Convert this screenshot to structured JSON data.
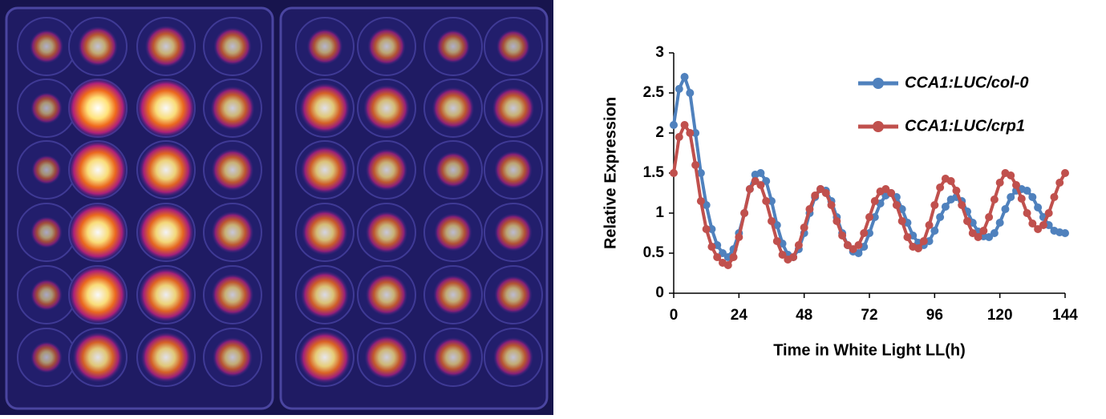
{
  "chart_data": {
    "type": "line",
    "x_label": "Time in White Light LL(h)",
    "y_label": "Relative Expression",
    "x": [
      0,
      2,
      4,
      6,
      8,
      10,
      12,
      14,
      16,
      18,
      20,
      22,
      24,
      26,
      28,
      30,
      32,
      34,
      36,
      38,
      40,
      42,
      44,
      46,
      48,
      50,
      52,
      54,
      56,
      58,
      60,
      62,
      64,
      66,
      68,
      70,
      72,
      74,
      76,
      78,
      80,
      82,
      84,
      86,
      88,
      90,
      92,
      94,
      96,
      98,
      100,
      102,
      104,
      106,
      108,
      110,
      112,
      114,
      116,
      118,
      120,
      122,
      124,
      126,
      128,
      130,
      132,
      134,
      136,
      138,
      140,
      142,
      144
    ],
    "series": [
      {
        "name": "CCA1:LUC/col-0",
        "color": "#4f81bd",
        "values": [
          2.1,
          2.55,
          2.7,
          2.5,
          2.0,
          1.5,
          1.1,
          0.8,
          0.6,
          0.5,
          0.45,
          0.55,
          0.75,
          1.0,
          1.3,
          1.48,
          1.5,
          1.4,
          1.15,
          0.85,
          0.62,
          0.48,
          0.45,
          0.55,
          0.75,
          1.0,
          1.2,
          1.3,
          1.28,
          1.15,
          0.95,
          0.75,
          0.6,
          0.52,
          0.5,
          0.58,
          0.75,
          0.95,
          1.12,
          1.22,
          1.25,
          1.2,
          1.05,
          0.88,
          0.72,
          0.63,
          0.6,
          0.65,
          0.78,
          0.95,
          1.08,
          1.17,
          1.2,
          1.15,
          1.02,
          0.88,
          0.77,
          0.71,
          0.7,
          0.75,
          0.88,
          1.05,
          1.2,
          1.28,
          1.3,
          1.28,
          1.2,
          1.07,
          0.95,
          0.85,
          0.78,
          0.76,
          0.75
        ]
      },
      {
        "name": "CCA1:LUC/crp1",
        "color": "#c0504d",
        "values": [
          1.5,
          1.95,
          2.1,
          2.0,
          1.6,
          1.15,
          0.8,
          0.58,
          0.45,
          0.38,
          0.35,
          0.45,
          0.7,
          1.0,
          1.3,
          1.4,
          1.35,
          1.15,
          0.9,
          0.65,
          0.48,
          0.42,
          0.45,
          0.6,
          0.82,
          1.05,
          1.22,
          1.3,
          1.25,
          1.1,
          0.9,
          0.72,
          0.6,
          0.55,
          0.6,
          0.75,
          0.95,
          1.15,
          1.27,
          1.3,
          1.25,
          1.1,
          0.9,
          0.7,
          0.58,
          0.56,
          0.65,
          0.85,
          1.1,
          1.32,
          1.43,
          1.4,
          1.28,
          1.1,
          0.9,
          0.75,
          0.7,
          0.78,
          0.95,
          1.17,
          1.38,
          1.5,
          1.47,
          1.35,
          1.18,
          1.0,
          0.87,
          0.8,
          0.85,
          1.0,
          1.2,
          1.38,
          1.5
        ]
      }
    ],
    "xlim": [
      0,
      144
    ],
    "xticks": [
      0,
      24,
      48,
      72,
      96,
      120,
      144
    ],
    "ylim": [
      0,
      3
    ],
    "yticks": [
      0,
      0.5,
      1,
      1.5,
      2,
      2.5,
      3
    ],
    "legend": "upper right"
  }
}
